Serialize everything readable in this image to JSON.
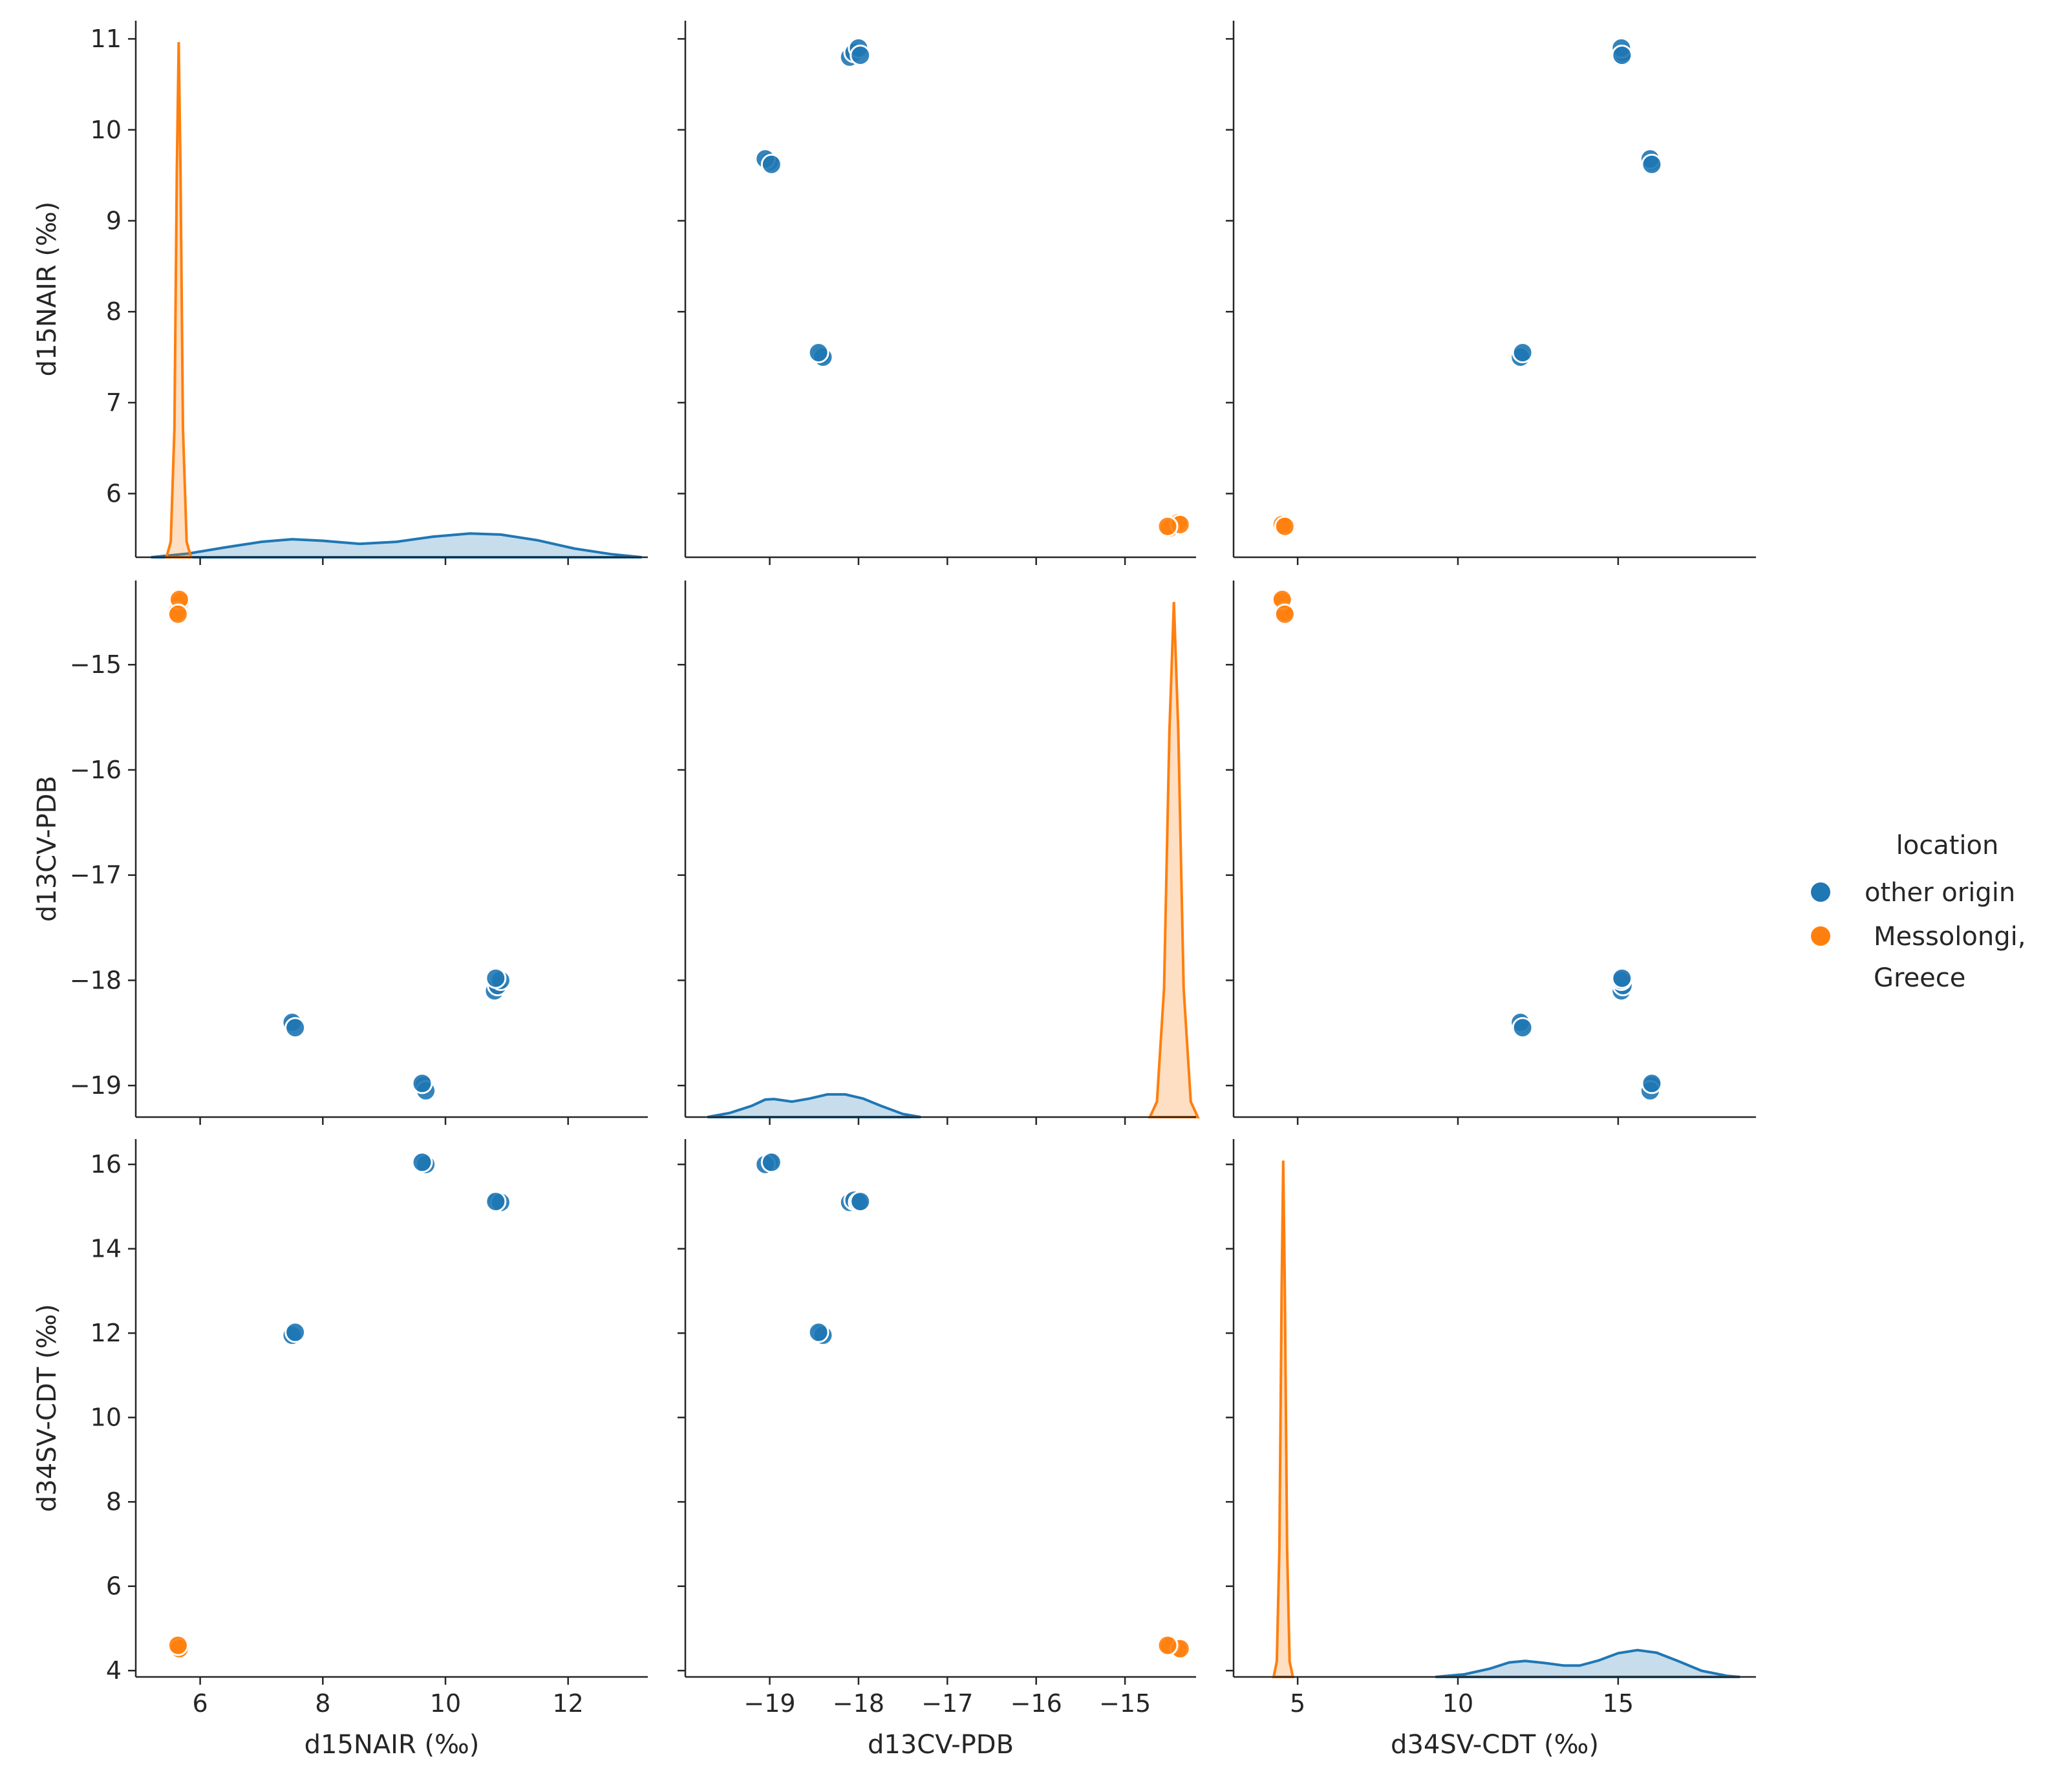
{
  "chart_data": {
    "type": "scatter",
    "subtype": "pairplot",
    "variables": [
      "d15NAIR (‰)",
      "d13CV-PDB",
      "d34SV-CDT (‰)"
    ],
    "diagonal": "kde",
    "legend": {
      "title": "location",
      "placement": "right",
      "entries": [
        {
          "label": "other origin",
          "color": "#1f77b4"
        },
        {
          "label_lines": [
            "Messolongi,",
            "Greece"
          ],
          "color": "#ff7f0e"
        }
      ]
    },
    "axes": {
      "d15NAIR": {
        "range": [
          4.95,
          13.3
        ],
        "ticks": [
          6,
          8,
          10,
          12
        ],
        "tick_labels": [
          "6",
          "8",
          "10",
          "12"
        ],
        "y_range": [
          5.3,
          11.2
        ],
        "y_ticks": [
          6,
          7,
          8,
          9,
          10,
          11
        ],
        "y_tick_labels": [
          "6",
          "7",
          "8",
          "9",
          "10",
          "11"
        ]
      },
      "d13CV-PDB": {
        "range": [
          -19.95,
          -14.2
        ],
        "ticks": [
          -19,
          -18,
          -17,
          -16,
          -15
        ],
        "tick_labels": [
          "−19",
          "−18",
          "−17",
          "−16",
          "−15"
        ],
        "y_range": [
          -19.3,
          -14.2
        ],
        "y_ticks": [
          -19,
          -18,
          -17,
          -16,
          -15
        ],
        "y_tick_labels": [
          "−19",
          "−18",
          "−17",
          "−16",
          "−15"
        ]
      },
      "d34SV-CDT": {
        "range": [
          3.0,
          19.3
        ],
        "ticks": [
          5,
          10,
          15
        ],
        "tick_labels": [
          "5",
          "10",
          "15"
        ],
        "y_range": [
          3.85,
          16.6
        ],
        "y_ticks": [
          4,
          6,
          8,
          10,
          12,
          14,
          16
        ],
        "y_tick_labels": [
          "4",
          "6",
          "8",
          "10",
          "12",
          "14",
          "16"
        ]
      }
    },
    "groups": [
      {
        "label": "other origin",
        "color": "#1f77b4",
        "points": [
          {
            "d15NAIR": 10.8,
            "d13CV-PDB": -18.1,
            "d34SV-CDT": 15.1
          },
          {
            "d15NAIR": 10.85,
            "d13CV-PDB": -18.05,
            "d34SV-CDT": 15.15
          },
          {
            "d15NAIR": 10.9,
            "d13CV-PDB": -18.0,
            "d34SV-CDT": 15.1
          },
          {
            "d15NAIR": 10.82,
            "d13CV-PDB": -17.98,
            "d34SV-CDT": 15.12
          },
          {
            "d15NAIR": 9.65,
            "d13CV-PDB": -19.0,
            "d34SV-CDT": 16.05
          },
          {
            "d15NAIR": 9.68,
            "d13CV-PDB": -19.05,
            "d34SV-CDT": 16.0
          },
          {
            "d15NAIR": 9.62,
            "d13CV-PDB": -18.98,
            "d34SV-CDT": 16.05
          },
          {
            "d15NAIR": 7.52,
            "d13CV-PDB": -18.42,
            "d34SV-CDT": 12.0
          },
          {
            "d15NAIR": 7.5,
            "d13CV-PDB": -18.4,
            "d34SV-CDT": 11.95
          },
          {
            "d15NAIR": 7.55,
            "d13CV-PDB": -18.45,
            "d34SV-CDT": 12.02
          }
        ]
      },
      {
        "label": "Messolongi, Greece",
        "color": "#ff7f0e",
        "points": [
          {
            "d15NAIR": 5.65,
            "d13CV-PDB": -14.45,
            "d34SV-CDT": 4.55
          },
          {
            "d15NAIR": 5.68,
            "d13CV-PDB": -14.4,
            "d34SV-CDT": 4.5
          },
          {
            "d15NAIR": 5.62,
            "d13CV-PDB": -14.5,
            "d34SV-CDT": 4.58
          },
          {
            "d15NAIR": 5.66,
            "d13CV-PDB": -14.38,
            "d34SV-CDT": 4.52
          },
          {
            "d15NAIR": 5.64,
            "d13CV-PDB": -14.52,
            "d34SV-CDT": 4.6
          }
        ]
      }
    ],
    "kde": {
      "d15NAIR": {
        "other origin": {
          "x": [
            5.2,
            5.8,
            6.4,
            7.0,
            7.5,
            8.0,
            8.6,
            9.2,
            9.8,
            10.4,
            10.9,
            11.5,
            12.1,
            12.7,
            13.2
          ],
          "y": [
            0.0,
            0.07,
            0.19,
            0.3,
            0.35,
            0.32,
            0.26,
            0.3,
            0.4,
            0.46,
            0.44,
            0.33,
            0.17,
            0.06,
            0.0
          ]
        },
        "Messolongi, Greece": {
          "x": [
            5.45,
            5.52,
            5.58,
            5.62,
            5.65,
            5.68,
            5.72,
            5.78,
            5.85
          ],
          "y": [
            0.0,
            0.3,
            2.5,
            7.5,
            10.0,
            7.5,
            2.5,
            0.3,
            0.0
          ]
        }
      },
      "d13CV-PDB": {
        "other origin": {
          "x": [
            -19.7,
            -19.45,
            -19.2,
            -19.05,
            -18.95,
            -18.75,
            -18.55,
            -18.35,
            -18.15,
            -17.95,
            -17.75,
            -17.5,
            -17.3
          ],
          "y": [
            0.0,
            0.08,
            0.22,
            0.34,
            0.35,
            0.3,
            0.36,
            0.44,
            0.44,
            0.36,
            0.22,
            0.06,
            0.0
          ]
        },
        "Messolongi, Greece": {
          "x": [
            -14.72,
            -14.64,
            -14.56,
            -14.5,
            -14.45,
            -14.4,
            -14.34,
            -14.26,
            -14.18
          ],
          "y": [
            0.0,
            0.3,
            2.5,
            7.5,
            10.0,
            7.5,
            2.5,
            0.3,
            0.0
          ]
        }
      },
      "d34SV-CDT": {
        "other origin": {
          "x": [
            9.3,
            10.2,
            11.0,
            11.6,
            12.1,
            12.7,
            13.3,
            13.8,
            14.4,
            15.0,
            15.6,
            16.2,
            16.9,
            17.6,
            18.4,
            18.8
          ],
          "y": [
            0.0,
            0.05,
            0.16,
            0.28,
            0.31,
            0.27,
            0.22,
            0.22,
            0.32,
            0.46,
            0.52,
            0.47,
            0.3,
            0.12,
            0.02,
            0.0
          ]
        },
        "Messolongi, Greece": {
          "x": [
            4.25,
            4.35,
            4.43,
            4.5,
            4.55,
            4.6,
            4.67,
            4.75,
            4.85
          ],
          "y": [
            0.0,
            0.3,
            2.5,
            7.5,
            10.0,
            7.5,
            2.5,
            0.3,
            0.0
          ]
        }
      }
    }
  }
}
